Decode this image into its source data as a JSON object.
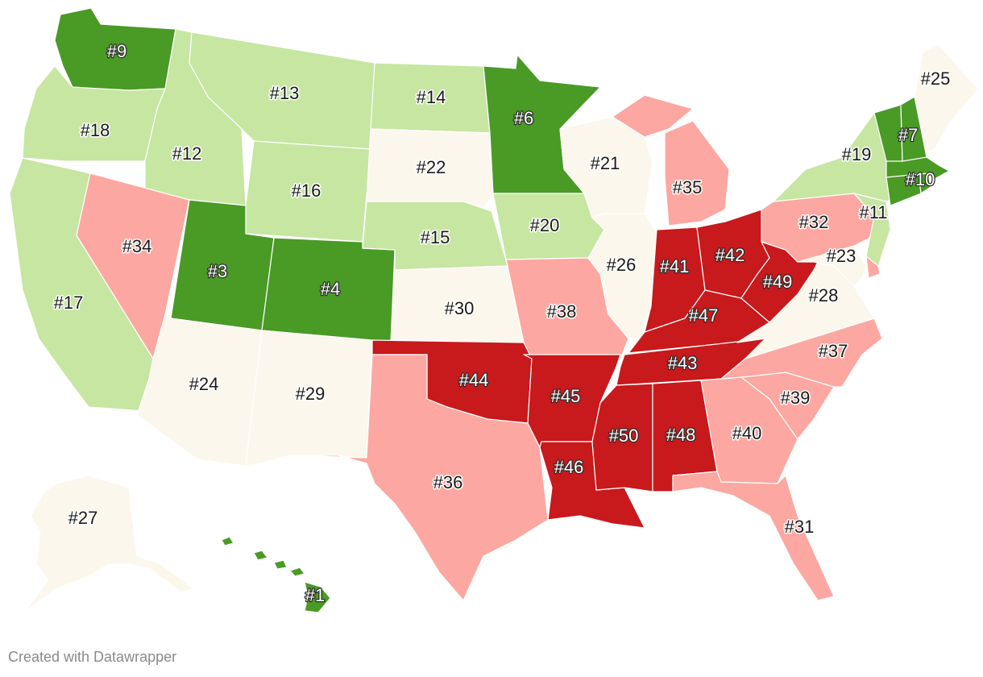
{
  "colors": {
    "top": "#4a9a26",
    "good": "#c6e6a2",
    "mid": "#fbf7ec",
    "poor": "#fca7a1",
    "bottom": "#c8191c",
    "credit": "#8a8a8a"
  },
  "credit": "Created with Datawrapper",
  "states": [
    {
      "id": "WA",
      "rank": "#9",
      "tier": "top"
    },
    {
      "id": "OR",
      "rank": "#18",
      "tier": "good"
    },
    {
      "id": "CA",
      "rank": "#17",
      "tier": "good"
    },
    {
      "id": "ID",
      "rank": "#12",
      "tier": "good"
    },
    {
      "id": "NV",
      "rank": "#34",
      "tier": "poor"
    },
    {
      "id": "MT",
      "rank": "#13",
      "tier": "good"
    },
    {
      "id": "WY",
      "rank": "#16",
      "tier": "good"
    },
    {
      "id": "UT",
      "rank": "#3",
      "tier": "top"
    },
    {
      "id": "AZ",
      "rank": "#24",
      "tier": "mid"
    },
    {
      "id": "CO",
      "rank": "#4",
      "tier": "top"
    },
    {
      "id": "NM",
      "rank": "#29",
      "tier": "mid"
    },
    {
      "id": "ND",
      "rank": "#14",
      "tier": "good"
    },
    {
      "id": "SD",
      "rank": "#22",
      "tier": "mid"
    },
    {
      "id": "NE",
      "rank": "#15",
      "tier": "good"
    },
    {
      "id": "KS",
      "rank": "#30",
      "tier": "mid"
    },
    {
      "id": "OK",
      "rank": "#44",
      "tier": "bottom"
    },
    {
      "id": "TX",
      "rank": "#36",
      "tier": "poor"
    },
    {
      "id": "MN",
      "rank": "#6",
      "tier": "top"
    },
    {
      "id": "IA",
      "rank": "#20",
      "tier": "good"
    },
    {
      "id": "MO",
      "rank": "#38",
      "tier": "poor"
    },
    {
      "id": "AR",
      "rank": "#45",
      "tier": "bottom"
    },
    {
      "id": "LA",
      "rank": "#46",
      "tier": "bottom"
    },
    {
      "id": "WI",
      "rank": "#21",
      "tier": "mid"
    },
    {
      "id": "IL",
      "rank": "#26",
      "tier": "mid"
    },
    {
      "id": "MI",
      "rank": "#35",
      "tier": "poor"
    },
    {
      "id": "IN",
      "rank": "#41",
      "tier": "bottom"
    },
    {
      "id": "OH",
      "rank": "#42",
      "tier": "bottom"
    },
    {
      "id": "KY",
      "rank": "#47",
      "tier": "bottom"
    },
    {
      "id": "TN",
      "rank": "#43",
      "tier": "bottom"
    },
    {
      "id": "MS",
      "rank": "#50",
      "tier": "bottom"
    },
    {
      "id": "AL",
      "rank": "#48",
      "tier": "bottom"
    },
    {
      "id": "GA",
      "rank": "#40",
      "tier": "poor"
    },
    {
      "id": "FL",
      "rank": "#31",
      "tier": "poor"
    },
    {
      "id": "SC",
      "rank": "#39",
      "tier": "poor"
    },
    {
      "id": "NC",
      "rank": "#37",
      "tier": "poor"
    },
    {
      "id": "VA",
      "rank": "#28",
      "tier": "mid"
    },
    {
      "id": "WV",
      "rank": "#49",
      "tier": "bottom"
    },
    {
      "id": "MD",
      "rank": "#23",
      "tier": "mid"
    },
    {
      "id": "DE",
      "rank": "",
      "tier": "poor"
    },
    {
      "id": "PA",
      "rank": "#32",
      "tier": "poor"
    },
    {
      "id": "NJ",
      "rank": "#11",
      "tier": "good"
    },
    {
      "id": "NY",
      "rank": "#19",
      "tier": "good"
    },
    {
      "id": "CT",
      "rank": "",
      "tier": "top"
    },
    {
      "id": "RI",
      "rank": "",
      "tier": "top"
    },
    {
      "id": "MA",
      "rank": "#10",
      "tier": "top"
    },
    {
      "id": "VT",
      "rank": "",
      "tier": "top"
    },
    {
      "id": "NH",
      "rank": "#7",
      "tier": "top"
    },
    {
      "id": "ME",
      "rank": "#25",
      "tier": "mid"
    },
    {
      "id": "AK",
      "rank": "#27",
      "tier": "mid"
    },
    {
      "id": "HI",
      "rank": "#1",
      "tier": "top"
    }
  ]
}
